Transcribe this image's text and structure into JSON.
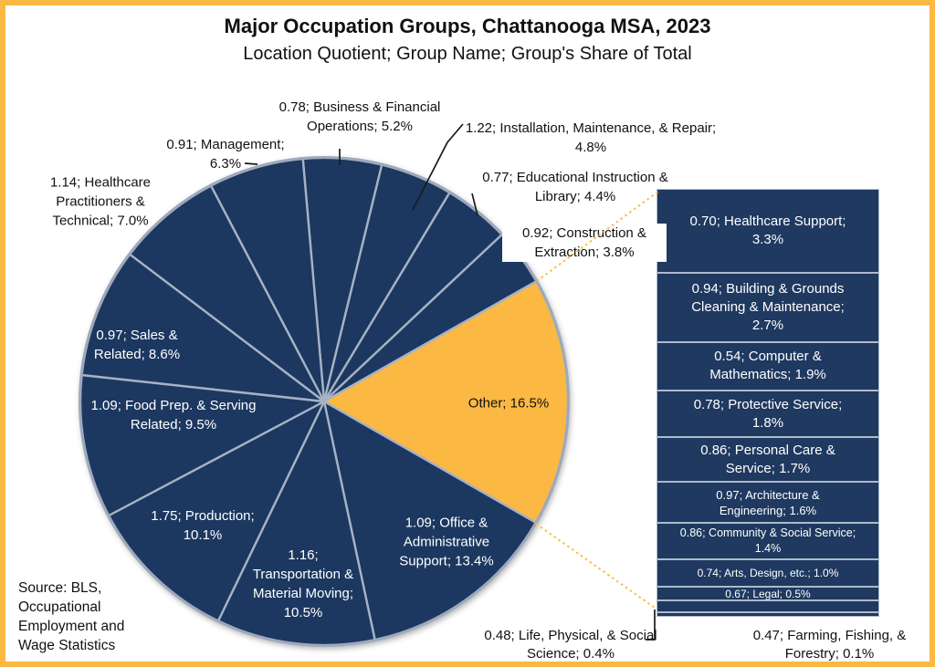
{
  "chart_data": {
    "type": "pie",
    "title": "Major Occupation Groups, Chattanooga MSA, 2023",
    "subtitle": "Location Quotient; Group Name; Group's Share of Total",
    "value_format": "location quotient; group name; share of total (%)",
    "slices": [
      {
        "location_quotient": 0.78,
        "name": "Business & Financial Operations",
        "share_pct": 5.2,
        "label": "0.78; Business & Financial Operations; 5.2%",
        "color": "#1F3960"
      },
      {
        "location_quotient": 1.22,
        "name": "Installation, Maintenance, & Repair",
        "share_pct": 4.8,
        "label": "1.22; Installation, Maintenance, & Repair; 4.8%",
        "color": "#1F3960"
      },
      {
        "location_quotient": 0.77,
        "name": "Educational Instruction & Library",
        "share_pct": 4.4,
        "label": "0.77; Educational Instruction & Library; 4.4%",
        "color": "#1F3960"
      },
      {
        "location_quotient": 0.92,
        "name": "Construction & Extraction",
        "share_pct": 3.8,
        "label": "0.92; Construction & Extraction; 3.8%",
        "color": "#1F3960"
      },
      {
        "location_quotient": null,
        "name": "Other",
        "share_pct": 16.5,
        "label": "Other; 16.5%",
        "color": "#FBB843"
      },
      {
        "location_quotient": 1.09,
        "name": "Office & Administrative Support",
        "share_pct": 13.4,
        "label": "1.09; Office & Administrative Support; 13.4%",
        "color": "#1F3960"
      },
      {
        "location_quotient": 1.16,
        "name": "Transportation & Material Moving",
        "share_pct": 10.5,
        "label": "1.16; Transportation & Material Moving; 10.5%",
        "color": "#1F3960"
      },
      {
        "location_quotient": 1.75,
        "name": "Production",
        "share_pct": 10.1,
        "label": "1.75; Production; 10.1%",
        "color": "#1F3960"
      },
      {
        "location_quotient": 1.09,
        "name": "Food Prep. & Serving Related",
        "share_pct": 9.5,
        "label": "1.09; Food Prep. & Serving Related; 9.5%",
        "color": "#1F3960"
      },
      {
        "location_quotient": 0.97,
        "name": "Sales & Related",
        "share_pct": 8.6,
        "label": "0.97; Sales & Related; 8.6%",
        "color": "#1F3960"
      },
      {
        "location_quotient": 1.14,
        "name": "Healthcare Practitioners & Technical",
        "share_pct": 7.0,
        "label": "1.14; Healthcare Practitioners & Technical; 7.0%",
        "color": "#1F3960"
      },
      {
        "location_quotient": 0.91,
        "name": "Management",
        "share_pct": 6.3,
        "label": "0.91; Management; 6.3%",
        "color": "#1F3960"
      }
    ],
    "other_breakdown": [
      {
        "location_quotient": 0.7,
        "name": "Healthcare Support",
        "share_pct": 3.3,
        "label": "0.70; Healthcare Support; 3.3%"
      },
      {
        "location_quotient": 0.94,
        "name": "Building & Grounds Cleaning & Maintenance",
        "share_pct": 2.7,
        "label": "0.94; Building & Grounds Cleaning & Maintenance; 2.7%"
      },
      {
        "location_quotient": 0.54,
        "name": "Computer & Mathematics",
        "share_pct": 1.9,
        "label": "0.54; Computer & Mathematics; 1.9%"
      },
      {
        "location_quotient": 0.78,
        "name": "Protective Service",
        "share_pct": 1.8,
        "label": "0.78; Protective Service; 1.8%"
      },
      {
        "location_quotient": 0.86,
        "name": "Personal Care & Service",
        "share_pct": 1.7,
        "label": "0.86; Personal Care & Service; 1.7%"
      },
      {
        "location_quotient": 0.97,
        "name": "Architecture & Engineering",
        "share_pct": 1.6,
        "label": "0.97; Architecture & Engineering; 1.6%"
      },
      {
        "location_quotient": 0.86,
        "name": "Community & Social Service",
        "share_pct": 1.4,
        "label": "0.86; Community & Social Service; 1.4%"
      },
      {
        "location_quotient": 0.74,
        "name": "Arts, Design, etc.",
        "share_pct": 1.0,
        "label": "0.74; Arts, Design, etc.; 1.0%"
      },
      {
        "location_quotient": 0.67,
        "name": "Legal",
        "share_pct": 0.5,
        "label": "0.67; Legal; 0.5%"
      },
      {
        "location_quotient": 0.48,
        "name": "Life, Physical, & Social Science",
        "share_pct": 0.4,
        "label": "0.48; Life, Physical, & Social Science; 0.4%"
      },
      {
        "location_quotient": 0.47,
        "name": "Farming, Fishing, & Forestry",
        "share_pct": 0.1,
        "label": "0.47; Farming, Fishing, & Forestry; 0.1%"
      }
    ],
    "legend_position": "none",
    "grid": false
  },
  "source_note": "Source: BLS,\nOccupational\nEmployment and\nWage Statistics",
  "colors": {
    "navy": "#1F3960",
    "gold": "#FBB843",
    "frame_border": "#FBB843",
    "slice_outline": "#A6B2C5",
    "pie_rim": "#9DA9BC",
    "bar_border": "#AEBACB",
    "leader_line": "#1a1a1a",
    "dotted_leader": "#F9BC4B",
    "label_dark": "#111111",
    "label_light": "#FFFFFF"
  }
}
